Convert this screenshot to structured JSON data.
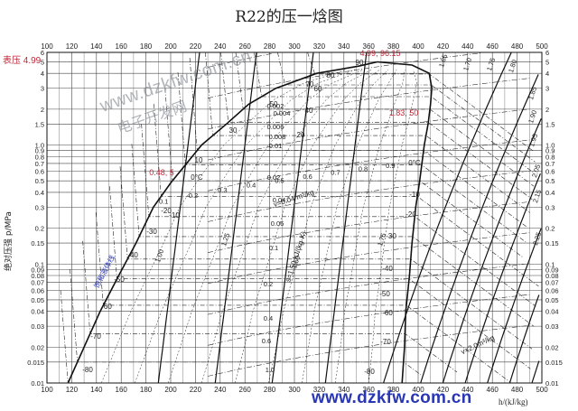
{
  "title": "R22的压一焓图",
  "gauge_label": "表压 4.99",
  "watermark": {
    "site_top": "www.dzkfw.com.cn",
    "name_cn": "电子开发网",
    "site_bottom": "www.dzkfw.com.cn"
  },
  "y_axis_label": "绝对压强 p/MPa",
  "x_axis_label": "h/(kJ/kg)",
  "x_ticks": [
    "100",
    "120",
    "140",
    "160",
    "180",
    "200",
    "220",
    "240",
    "260",
    "280",
    "300",
    "320",
    "340",
    "360",
    "380",
    "400",
    "420",
    "440",
    "460",
    "480",
    "500"
  ],
  "y_ticks": [
    "0.01",
    "0.015",
    "0.02",
    "0.03",
    "0.04",
    "0.05",
    "0.06",
    "0.07",
    "0.08",
    "0.09",
    "0.1",
    "0.15",
    "0.2",
    "0.3",
    "0.4",
    "0.5",
    "0.6",
    "0.7",
    "0.8",
    "0.9",
    "1.0",
    "1.5",
    "2",
    "3",
    "4",
    "5",
    "6"
  ],
  "red_annotations": [
    "4.99, 96.15",
    "1.83, 50",
    "0.48, 5"
  ],
  "quality_labels": [
    "0.1",
    "0.2",
    "0.3",
    "0.4",
    "0.5",
    "0.6",
    "0.7",
    "0.8",
    "0.9"
  ],
  "isotherm_labels_left": [
    "90",
    "70",
    "50",
    "30",
    "10",
    "-10",
    "-20",
    "-30",
    "-40",
    "-50",
    "-60",
    "-70",
    "-80",
    "0°C"
  ],
  "isotherm_labels_right": [
    "80",
    "60",
    "40",
    "20",
    "0°C",
    "-10",
    "-20",
    "-30",
    "-40",
    "-50",
    "-60",
    "-70",
    "-80"
  ],
  "isochore_labels": [
    "0.002",
    "0.004",
    "0.006",
    "0.008",
    "0.01",
    "0.02",
    "0.04",
    "0.06",
    "0.1",
    "0.2",
    "0.4",
    "0.6",
    "1.0"
  ],
  "isochore_title": "v=0.04 m³/kg",
  "isentrope_title": "s=1.50 kJ/(kg·K)",
  "isochore_title_bottom": "v=2.0m³/kg",
  "isentrope_labels": [
    "1.00",
    "1.25",
    "1.50",
    "1.75",
    "1.65",
    "1.70",
    "1.75",
    "1.80",
    "1.85",
    "1.90",
    "1.95",
    "2.05",
    "2.15",
    "2.25"
  ],
  "saturated_liquid_label": "饱和液体线",
  "chart_data": {
    "type": "pressure-enthalpy diagram",
    "xlabel": "h/(kJ/kg)",
    "ylabel": "绝对压强 p/MPa",
    "xlim": [
      100,
      500
    ],
    "ylim": [
      0.01,
      6
    ],
    "y_scale": "log",
    "grid": true,
    "saturated_liquid": [
      [
        117,
        0.01
      ],
      [
        130,
        0.02
      ],
      [
        143,
        0.04
      ],
      [
        158,
        0.08
      ],
      [
        172,
        0.15
      ],
      [
        186,
        0.3
      ],
      [
        200,
        0.48
      ],
      [
        225,
        1.0
      ],
      [
        245,
        1.5
      ],
      [
        263,
        2.2
      ],
      [
        285,
        3.0
      ],
      [
        318,
        4.0
      ],
      [
        352,
        4.6
      ],
      [
        367,
        4.99
      ]
    ],
    "saturated_vapor": [
      [
        387,
        0.01
      ],
      [
        389,
        0.02
      ],
      [
        390,
        0.04
      ],
      [
        393,
        0.08
      ],
      [
        395,
        0.15
      ],
      [
        398,
        0.3
      ],
      [
        401,
        0.48
      ],
      [
        405,
        1.0
      ],
      [
        408,
        1.5
      ],
      [
        410,
        2.2
      ],
      [
        411,
        3.0
      ],
      [
        409,
        4.0
      ],
      [
        395,
        4.7
      ],
      [
        367,
        4.99
      ]
    ],
    "critical_point": {
      "label": "4.99, 96.15",
      "h": 367,
      "p": 4.99
    },
    "points": [
      {
        "label": "1.83, 50",
        "h": 400,
        "p": 1.83
      },
      {
        "label": "0.48, 5",
        "h": 200,
        "p": 0.48
      }
    ]
  }
}
